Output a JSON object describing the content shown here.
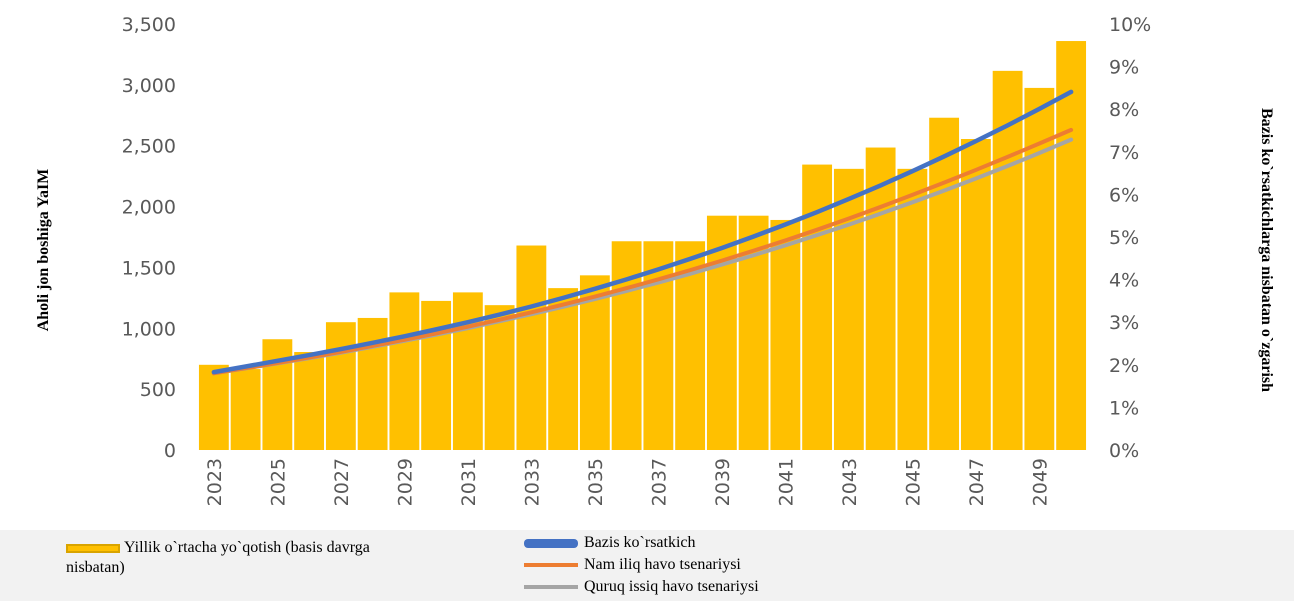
{
  "chart_data": {
    "type": "bar",
    "categories": [
      "2023",
      "2024",
      "2025",
      "2026",
      "2027",
      "2028",
      "2029",
      "2030",
      "2031",
      "2032",
      "2033",
      "2034",
      "2035",
      "2036",
      "2037",
      "2038",
      "2039",
      "2040",
      "2041",
      "2042",
      "2043",
      "2044",
      "2045",
      "2046",
      "2047",
      "2048",
      "2049",
      "2050"
    ],
    "x_tick_labels": [
      "2023",
      "2025",
      "2027",
      "2029",
      "2031",
      "2033",
      "2035",
      "2037",
      "2039",
      "2041",
      "2043",
      "2045",
      "2047",
      "2049"
    ],
    "bar_series": {
      "name": "Yillik o`rtacha yo`qotish (basis davrga nisbatan)",
      "axis": "right",
      "values": [
        2.0,
        1.9,
        2.6,
        2.3,
        3.0,
        3.1,
        3.7,
        3.5,
        3.7,
        3.4,
        4.8,
        3.8,
        4.1,
        4.9,
        4.9,
        4.9,
        5.5,
        5.5,
        5.4,
        6.7,
        6.6,
        7.1,
        6.6,
        7.8,
        7.3,
        8.9,
        8.5,
        9.6
      ]
    },
    "series": [
      {
        "name": "Bazis ko`rsatkich",
        "axis": "left",
        "values": [
          640,
          686,
          733,
          780,
          829,
          881,
          934,
          991,
          1050,
          1113,
          1179,
          1250,
          1324,
          1402,
          1484,
          1570,
          1660,
          1754,
          1853,
          1955,
          2063,
          2174,
          2291,
          2412,
          2538,
          2667,
          2803,
          2942
        ]
      },
      {
        "name": "Nam iliq havo tsenariysi",
        "axis": "left",
        "values": [
          630,
          672,
          715,
          760,
          806,
          855,
          906,
          958,
          1013,
          1071,
          1131,
          1195,
          1261,
          1330,
          1402,
          1478,
          1556,
          1638,
          1722,
          1810,
          1902,
          1997,
          2096,
          2197,
          2301,
          2408,
          2518,
          2630
        ]
      },
      {
        "name": "Quruq issiq havo tsenariysi",
        "axis": "left",
        "values": [
          630,
          670,
          712,
          755,
          800,
          848,
          897,
          948,
          1001,
          1058,
          1116,
          1176,
          1240,
          1307,
          1376,
          1448,
          1523,
          1600,
          1682,
          1766,
          1852,
          1942,
          2035,
          2131,
          2231,
          2333,
          2440,
          2550
        ]
      }
    ],
    "ylabel": "Aholi jon boshiga YaIM",
    "ylabel_right": "Bazis ko`rsatkichlarga nisbatan o`zgarish",
    "ylim": [
      0,
      3500
    ],
    "ylim_right": [
      0,
      10
    ],
    "yticks": [
      "0",
      "500",
      "1,000",
      "1,500",
      "2,000",
      "2,500",
      "3,000",
      "3,500"
    ],
    "yticks_right": [
      "0%",
      "1%",
      "2%",
      "3%",
      "4%",
      "5%",
      "6%",
      "7%",
      "8%",
      "9%",
      "10%"
    ],
    "grid": false,
    "legend_position": "bottom",
    "colors": {
      "bars": "#ffc000",
      "bazis": "#4472c4",
      "nam": "#ed7d31",
      "quruq": "#a5a5a5"
    }
  },
  "legend": {
    "bar_label": "Yillik o`rtacha yo`qotish (basis davrga",
    "bar_label_cont": "nisbatan)",
    "base_label": "Bazis ko`rsatkich",
    "wet_label": "Nam iliq havo tsenariysi",
    "dry_label": "Quruq issiq havo tsenariysi"
  }
}
